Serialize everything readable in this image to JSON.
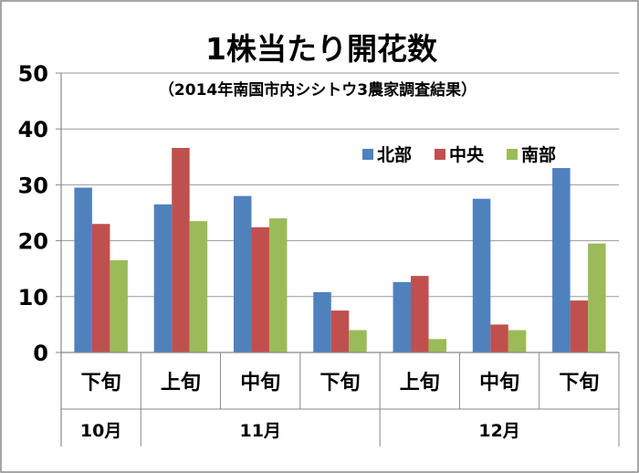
{
  "chart_data": {
    "type": "bar",
    "title": "1株当たり開花数",
    "subtitle": "（2014年南国市内シシトウ3農家調査結果）",
    "categories": [
      "下旬",
      "上旬",
      "中旬",
      "下旬",
      "上旬",
      "中旬",
      "下旬"
    ],
    "month_groups": [
      {
        "label": "10月",
        "span": [
          0,
          0
        ]
      },
      {
        "label": "11月",
        "span": [
          1,
          3
        ]
      },
      {
        "label": "12月",
        "span": [
          4,
          6
        ]
      }
    ],
    "series": [
      {
        "name": "北部",
        "color": "#4F81BD",
        "values": [
          29.5,
          26.5,
          28.0,
          10.8,
          12.6,
          27.5,
          33.0
        ]
      },
      {
        "name": "中央",
        "color": "#C0504D",
        "values": [
          23.0,
          36.6,
          22.4,
          7.5,
          13.7,
          5.0,
          9.3
        ]
      },
      {
        "name": "南部",
        "color": "#9BBB59",
        "values": [
          16.5,
          23.5,
          24.0,
          4.0,
          2.4,
          4.0,
          19.5
        ]
      }
    ],
    "ylim": [
      0,
      50
    ],
    "yticks": [
      0,
      10,
      20,
      30,
      40,
      50
    ],
    "grid": true,
    "legend": "top-right",
    "xlabel": "",
    "ylabel": ""
  }
}
